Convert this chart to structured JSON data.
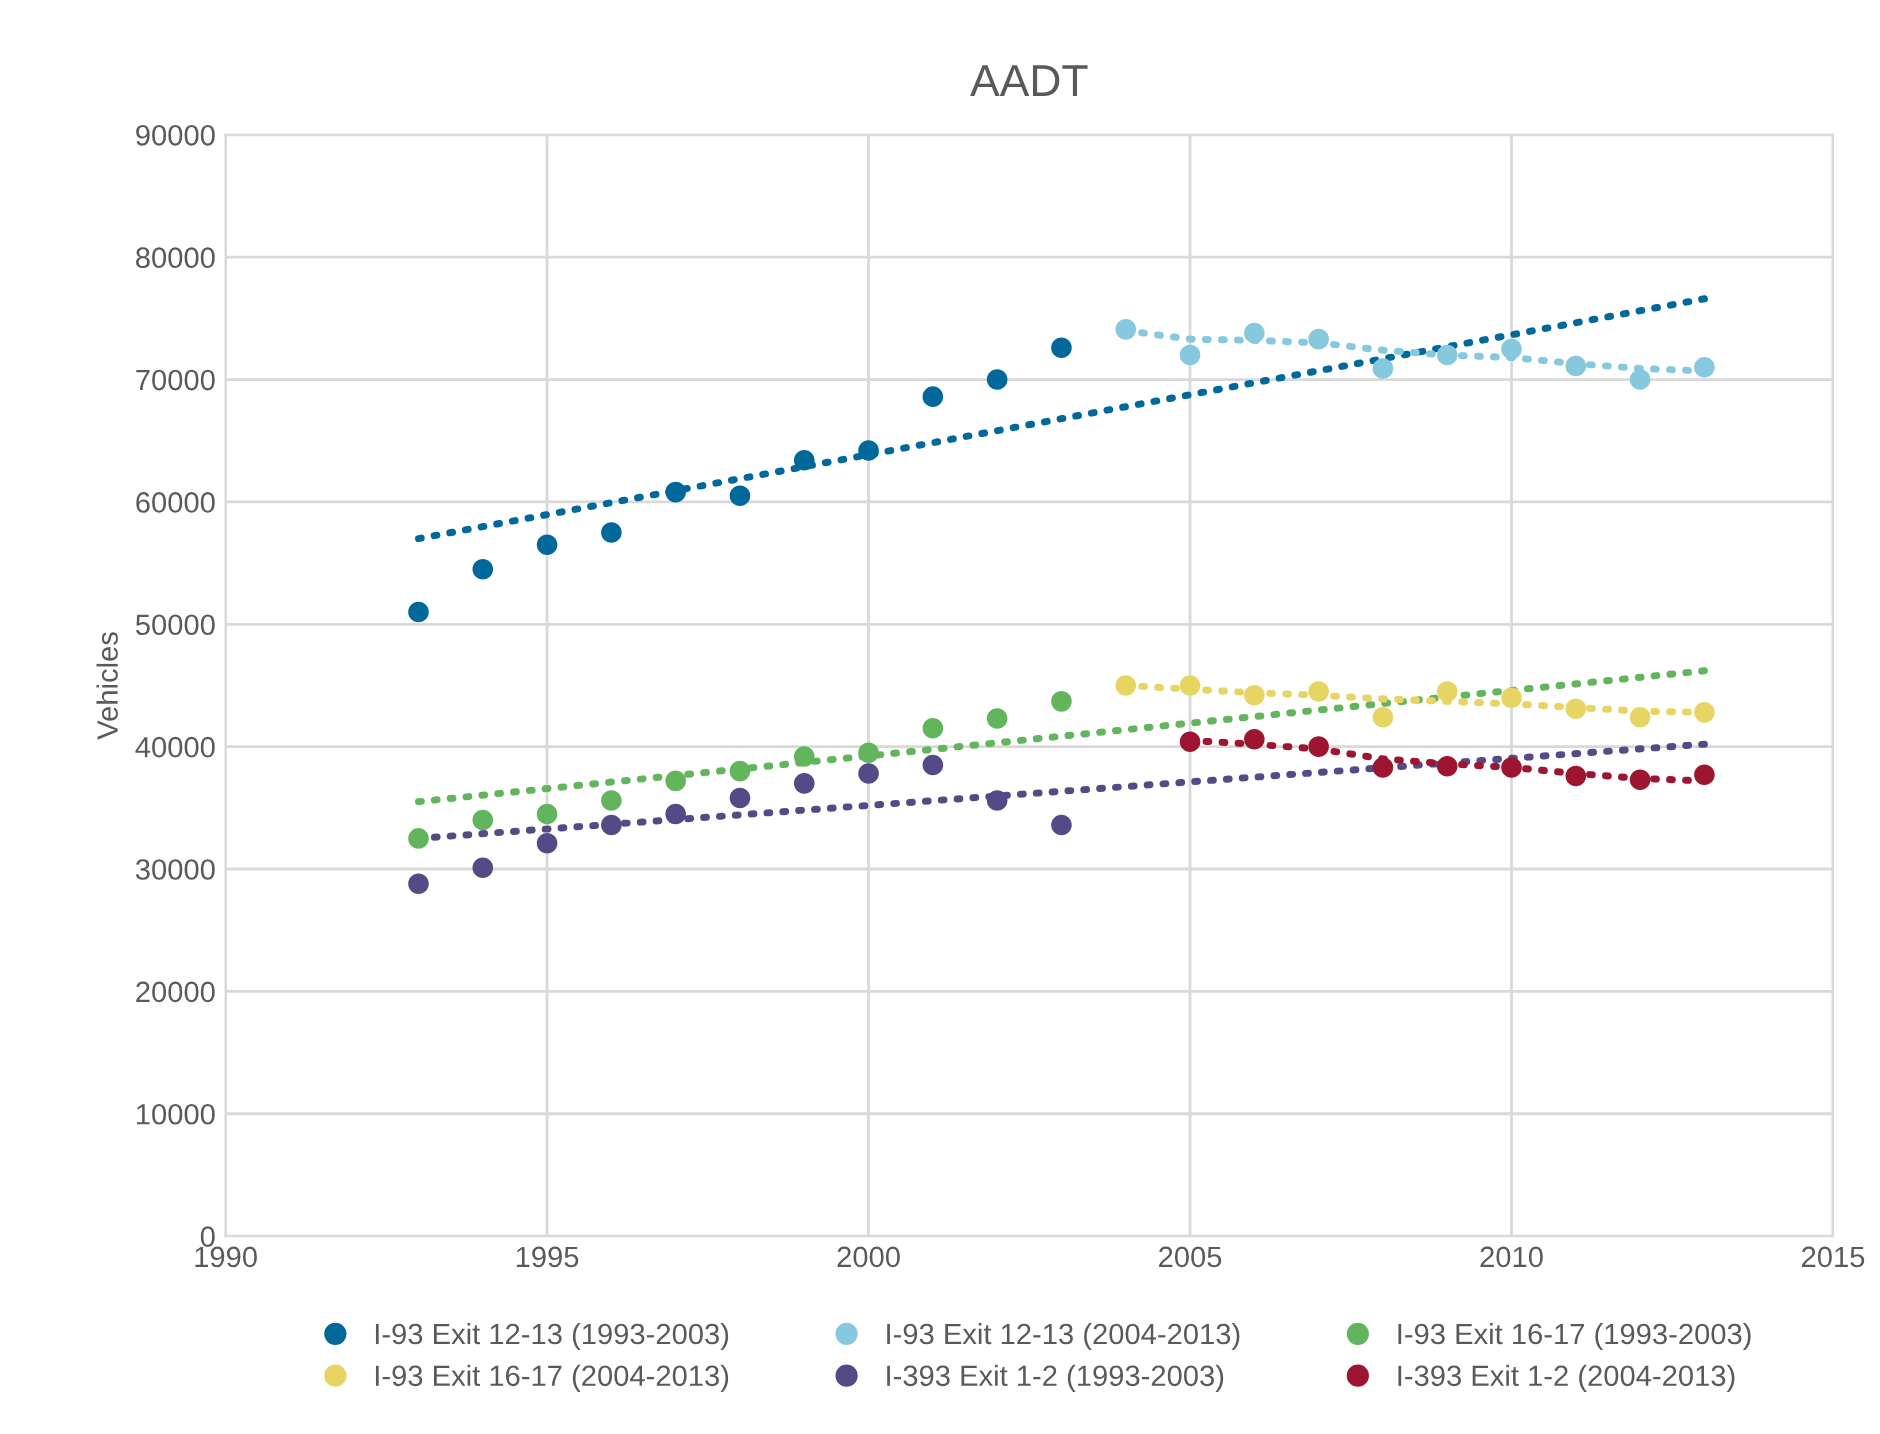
{
  "chart_data": {
    "type": "scatter",
    "title": "AADT",
    "ylabel": "Vehicles",
    "xlim": [
      1990,
      2015
    ],
    "xticks": [
      1990,
      1995,
      2000,
      2005,
      2010,
      2015
    ],
    "ylim": [
      0,
      90000
    ],
    "yticks": [
      0,
      10000,
      20000,
      30000,
      40000,
      50000,
      60000,
      70000,
      80000,
      90000
    ],
    "grid": true,
    "legend": "bottom",
    "marker": "circle",
    "series": [
      {
        "name": "I-93 Exit 12-13 (1993-2003)",
        "color": "#00689a",
        "x": [
          1993,
          1994,
          1995,
          1996,
          1997,
          1998,
          1999,
          2000,
          2001,
          2002,
          2003
        ],
        "values": [
          51000,
          54500,
          56500,
          57500,
          60800,
          60500,
          63400,
          64200,
          68600,
          70000,
          72600
        ]
      },
      {
        "name": "I-93 Exit 12-13 (2004-2013)",
        "color": "#86c8de",
        "x": [
          2004,
          2005,
          2006,
          2007,
          2008,
          2009,
          2010,
          2011,
          2012,
          2013
        ],
        "values": [
          74100,
          72000,
          73800,
          73300,
          70900,
          72000,
          72500,
          71100,
          70000,
          71000
        ]
      },
      {
        "name": "I-93 Exit 16-17 (1993-2003)",
        "color": "#62b55d",
        "x": [
          1993,
          1994,
          1995,
          1996,
          1997,
          1998,
          1999,
          2000,
          2001,
          2002,
          2003
        ],
        "values": [
          32500,
          34000,
          34500,
          35600,
          37200,
          38000,
          39200,
          39500,
          41500,
          42300,
          43700
        ]
      },
      {
        "name": "I-93 Exit 16-17 (2004-2013)",
        "color": "#e8d463",
        "x": [
          2004,
          2005,
          2006,
          2007,
          2008,
          2009,
          2010,
          2011,
          2012,
          2013
        ],
        "values": [
          45000,
          45000,
          44200,
          44500,
          42400,
          44500,
          44000,
          43100,
          42400,
          42800
        ]
      },
      {
        "name": "I-393 Exit 1-2 (1993-2003)",
        "color": "#534a86",
        "x": [
          1993,
          1994,
          1995,
          1996,
          1997,
          1998,
          1999,
          2000,
          2001,
          2002,
          2003
        ],
        "values": [
          28800,
          30100,
          32100,
          33600,
          34500,
          35800,
          37000,
          37800,
          38500,
          35600,
          33600
        ]
      },
      {
        "name": "I-393 Exit 1-2 (2004-2013)",
        "color": "#9d1530",
        "x": [
          2005,
          2006,
          2007,
          2008,
          2009,
          2010,
          2011,
          2012,
          2013
        ],
        "values": [
          40400,
          40600,
          40000,
          38300,
          38400,
          38300,
          37600,
          37300,
          37700
        ]
      },
      {
        "type": "line",
        "line_style": "dotted",
        "marker": "none",
        "color": "#00689a",
        "x": [
          1993,
          2013
        ],
        "values": [
          57000,
          76600
        ]
      },
      {
        "type": "line",
        "line_style": "dotted",
        "marker": "none",
        "color": "#86c8de",
        "x": [
          2004,
          2005,
          2006,
          2007,
          2008,
          2009,
          2010,
          2011,
          2012,
          2013
        ],
        "values": [
          74000,
          73300,
          73200,
          73000,
          72400,
          72000,
          71800,
          71300,
          70900,
          70700
        ]
      },
      {
        "type": "line",
        "line_style": "dotted",
        "marker": "none",
        "color": "#62b55d",
        "x": [
          1993,
          2013
        ],
        "values": [
          35500,
          46200
        ]
      },
      {
        "type": "line",
        "line_style": "dotted",
        "marker": "none",
        "color": "#e8d463",
        "x": [
          2004,
          2005,
          2006,
          2007,
          2008,
          2009,
          2010,
          2011,
          2012,
          2013
        ],
        "values": [
          45000,
          44700,
          44400,
          44200,
          43900,
          43700,
          43500,
          43200,
          42900,
          42800
        ]
      },
      {
        "type": "line",
        "line_style": "dotted",
        "marker": "none",
        "color": "#534a86",
        "x": [
          1993,
          2013
        ],
        "values": [
          32500,
          40200
        ]
      },
      {
        "type": "line",
        "line_style": "dotted",
        "marker": "none",
        "color": "#9d1530",
        "x": [
          2005,
          2006,
          2007,
          2008,
          2009,
          2010,
          2011,
          2012,
          2013
        ],
        "values": [
          40500,
          40200,
          39800,
          39000,
          38600,
          38300,
          37800,
          37400,
          37200
        ]
      }
    ]
  }
}
